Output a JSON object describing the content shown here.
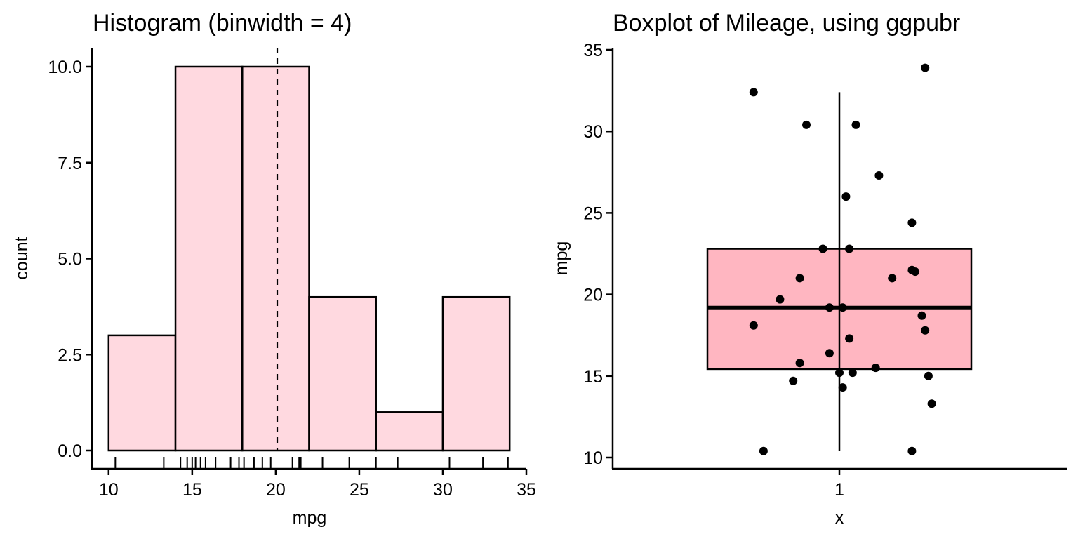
{
  "chart_data": [
    {
      "type": "bar",
      "title": "Histogram (binwidth = 4)",
      "xlabel": "mpg",
      "ylabel": "count",
      "bins": [
        {
          "x0": 10,
          "x1": 14,
          "count": 3
        },
        {
          "x0": 14,
          "x1": 18,
          "count": 10
        },
        {
          "x0": 18,
          "x1": 22,
          "count": 10
        },
        {
          "x0": 22,
          "x1": 26,
          "count": 4
        },
        {
          "x0": 26,
          "x1": 30,
          "count": 1
        },
        {
          "x0": 30,
          "x1": 34,
          "count": 4
        }
      ],
      "xlim": [
        9,
        35
      ],
      "ylim": [
        -0.5,
        10.5
      ],
      "x_ticks": [
        10,
        15,
        20,
        25,
        30,
        35
      ],
      "y_ticks": [
        0,
        2.5,
        5,
        7.5,
        10
      ],
      "y_tick_labels": [
        "0.0",
        "2.5",
        "5.0",
        "7.5",
        "10.0"
      ],
      "mean_line": 20.09,
      "rug_values": [
        10.4,
        13.3,
        14.3,
        14.7,
        15.0,
        15.2,
        15.5,
        15.8,
        16.4,
        17.3,
        17.8,
        18.1,
        18.7,
        19.2,
        19.7,
        21.0,
        21.4,
        21.5,
        22.8,
        24.4,
        26.0,
        27.3,
        30.4,
        32.4,
        33.9
      ],
      "bar_fill": "#ffd9e0",
      "bar_stroke": "#000000",
      "grid": false
    },
    {
      "type": "box",
      "title": "Boxplot of Mileage, using ggpubr",
      "xlabel": "x",
      "ylabel": "mpg",
      "categories": [
        "1"
      ],
      "box": {
        "min": 10.4,
        "q1": 15.425,
        "median": 19.2,
        "q3": 22.8,
        "max": 32.4
      },
      "ylim": [
        9.25,
        35
      ],
      "y_ticks": [
        10,
        15,
        20,
        25,
        30,
        35
      ],
      "points": [
        {
          "x": 0.74,
          "y": 32.4
        },
        {
          "x": 1.26,
          "y": 33.9
        },
        {
          "x": 0.9,
          "y": 30.4
        },
        {
          "x": 1.05,
          "y": 30.4
        },
        {
          "x": 1.12,
          "y": 27.3
        },
        {
          "x": 1.02,
          "y": 26.0
        },
        {
          "x": 1.22,
          "y": 24.4
        },
        {
          "x": 0.95,
          "y": 22.8
        },
        {
          "x": 1.03,
          "y": 22.8
        },
        {
          "x": 1.22,
          "y": 21.5
        },
        {
          "x": 1.23,
          "y": 21.4
        },
        {
          "x": 0.88,
          "y": 21.0
        },
        {
          "x": 1.16,
          "y": 21.0
        },
        {
          "x": 0.82,
          "y": 19.7
        },
        {
          "x": 0.97,
          "y": 19.2
        },
        {
          "x": 1.01,
          "y": 19.2
        },
        {
          "x": 1.25,
          "y": 18.7
        },
        {
          "x": 0.74,
          "y": 18.1
        },
        {
          "x": 1.26,
          "y": 17.8
        },
        {
          "x": 1.03,
          "y": 17.3
        },
        {
          "x": 0.97,
          "y": 16.4
        },
        {
          "x": 0.88,
          "y": 15.8
        },
        {
          "x": 1.11,
          "y": 15.5
        },
        {
          "x": 1.04,
          "y": 15.2
        },
        {
          "x": 1.0,
          "y": 15.2
        },
        {
          "x": 1.27,
          "y": 15.0
        },
        {
          "x": 0.86,
          "y": 14.7
        },
        {
          "x": 1.01,
          "y": 14.3
        },
        {
          "x": 1.28,
          "y": 13.3
        },
        {
          "x": 0.77,
          "y": 10.4
        },
        {
          "x": 1.22,
          "y": 10.4
        }
      ],
      "box_fill": "#ffb6c1",
      "box_stroke": "#000000",
      "grid": false
    }
  ]
}
